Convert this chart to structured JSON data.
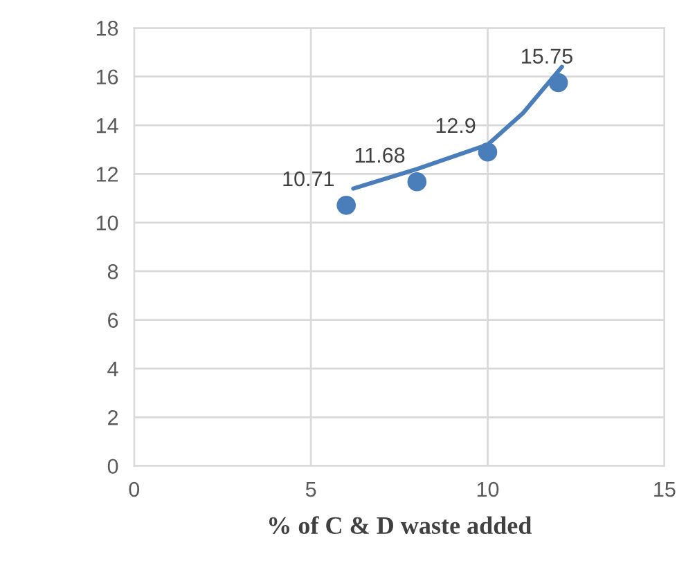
{
  "chart_data": {
    "type": "scatter",
    "xlabel": "% of C & D waste added",
    "xlim": [
      0,
      15
    ],
    "xticks": [
      0,
      5,
      10,
      15
    ],
    "ylim": [
      0,
      18
    ],
    "yticks": [
      0,
      2,
      4,
      6,
      8,
      10,
      12,
      14,
      16,
      18
    ],
    "grid": true,
    "series": [
      {
        "color": "#4a7ebb",
        "marker": "circle",
        "x": [
          6,
          8,
          10,
          12
        ],
        "values": [
          10.71,
          11.68,
          12.9,
          15.75
        ],
        "value_labels": [
          "10.71",
          "11.68",
          "12.9",
          "15.75"
        ]
      },
      {
        "type": "line",
        "marker": "none",
        "color": "#4a7ebb",
        "x": [
          6.2,
          8,
          10,
          11,
          12.1
        ],
        "values": [
          11.4,
          12.2,
          13.2,
          14.5,
          16.4
        ]
      }
    ]
  }
}
